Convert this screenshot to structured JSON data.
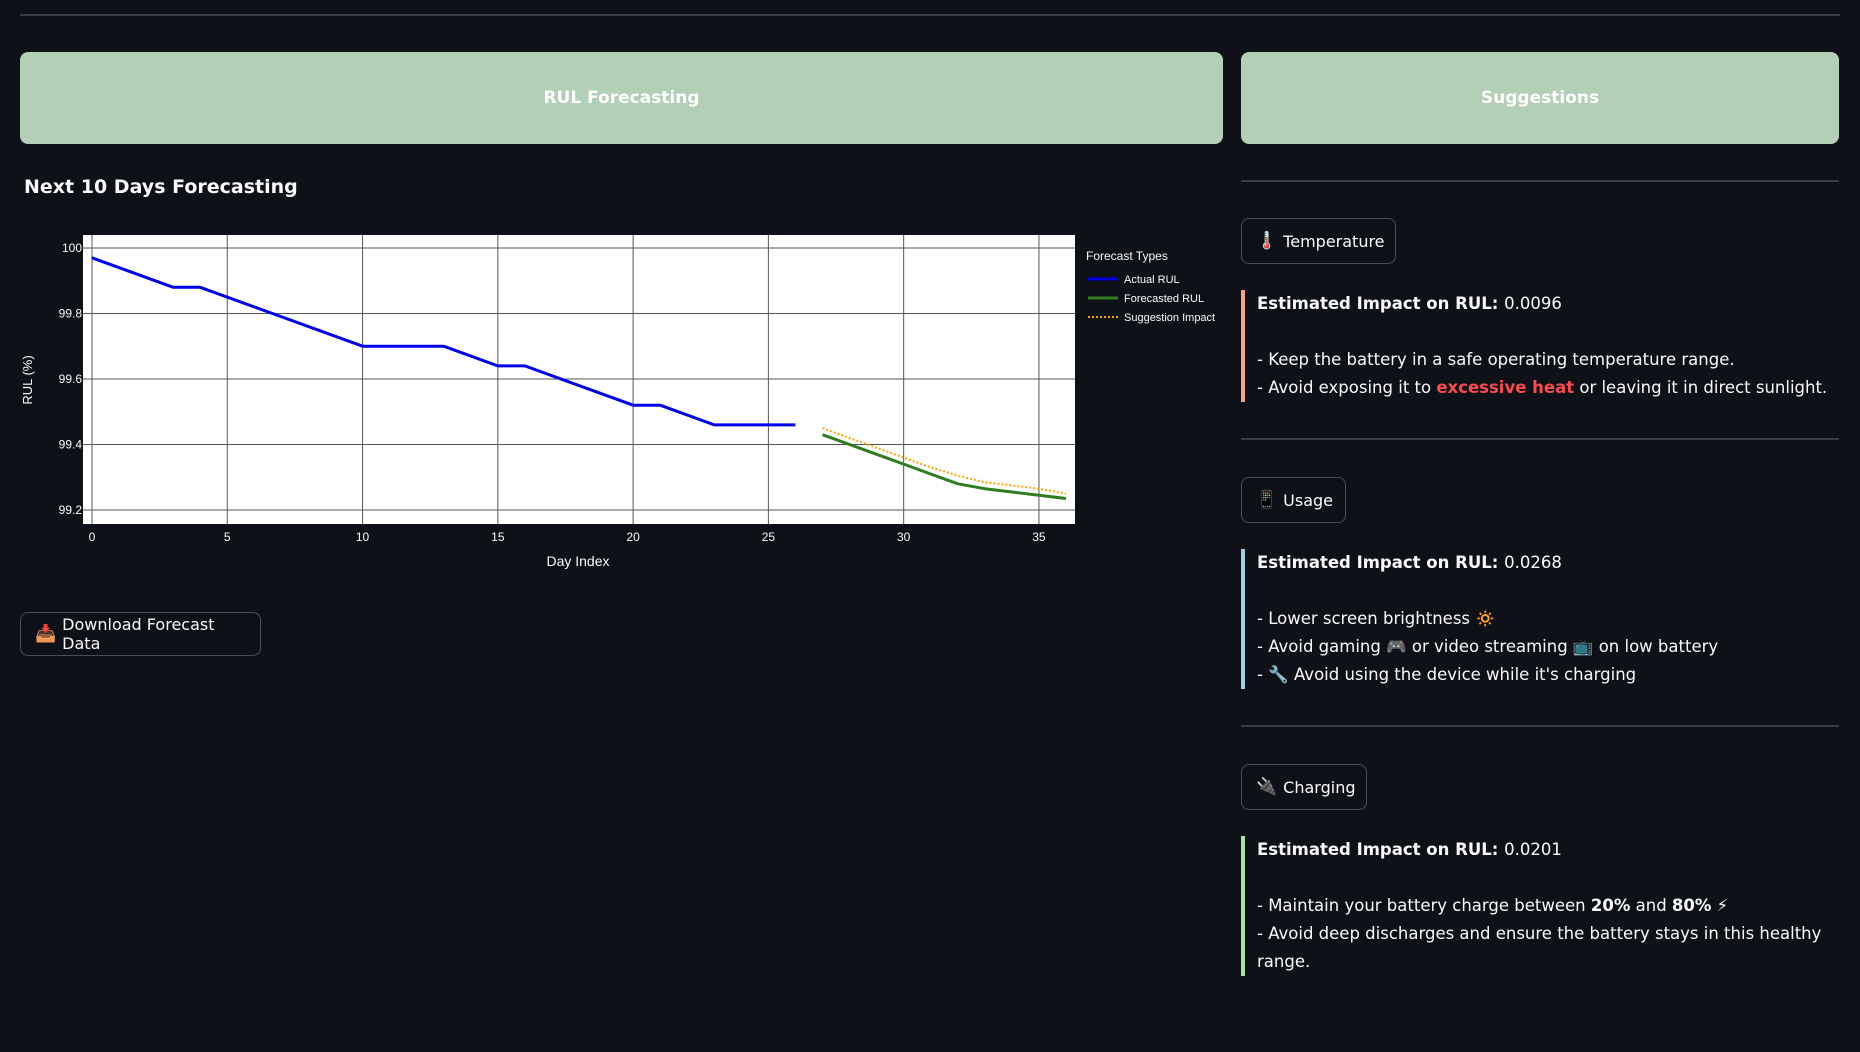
{
  "banners": {
    "left": "RUL Forecasting",
    "right": "Suggestions"
  },
  "section_title": "Next 10 Days Forecasting",
  "download_button": {
    "icon": "📥",
    "label": "Download Forecast Data"
  },
  "suggestions": {
    "temperature": {
      "icon": "🌡️",
      "label": "Temperature",
      "impact_label": "Estimated Impact on RUL:",
      "impact_value": "0.0096",
      "color": "#f4a582",
      "line1": "- Keep the battery in a safe operating temperature range.",
      "line2_pre": "- Avoid exposing it to ",
      "line2_em": "excessive heat",
      "line2_post": " or leaving it in direct sunlight."
    },
    "usage": {
      "icon": "📱",
      "label": "Usage",
      "impact_label": "Estimated Impact on RUL:",
      "impact_value": "0.0268",
      "color": "#a6cbe3",
      "line1": "- Lower screen brightness 🔅",
      "line2": "- Avoid gaming 🎮 or video streaming 📺 on low battery",
      "line3": "- 🔧 Avoid using the device while it's charging"
    },
    "charging": {
      "icon": "🔌",
      "label": "Charging",
      "impact_label": "Estimated Impact on RUL:",
      "impact_value": "0.0201",
      "color": "#a6e3a1",
      "line1_pre": "- Maintain your battery charge between ",
      "line1_b1": "20%",
      "line1_mid": " and ",
      "line1_b2": "80%",
      "line1_post": " ⚡",
      "line2": "- Avoid deep discharges and ensure the battery stays in this healthy range."
    }
  },
  "chart_data": {
    "type": "line",
    "xlabel": "Day Index",
    "ylabel": "RUL (%)",
    "xlim": [
      0,
      36
    ],
    "ylim": [
      99.2,
      100
    ],
    "x_ticks": [
      0,
      5,
      10,
      15,
      20,
      25,
      30,
      35
    ],
    "y_ticks": [
      99.2,
      99.4,
      99.6,
      99.8,
      100
    ],
    "grid": true,
    "legend_title": "Forecast Types",
    "legend_position": "right",
    "series": [
      {
        "name": "Actual RUL",
        "color": "#0000ee",
        "style": "solid",
        "points": [
          [
            0,
            99.97
          ],
          [
            3,
            99.88
          ],
          [
            4,
            99.88
          ],
          [
            10,
            99.7
          ],
          [
            13,
            99.7
          ],
          [
            15,
            99.64
          ],
          [
            16,
            99.64
          ],
          [
            20,
            99.52
          ],
          [
            21,
            99.52
          ],
          [
            23,
            99.46
          ],
          [
            26,
            99.46
          ]
        ]
      },
      {
        "name": "Forecasted RUL",
        "color": "#2e7d1e",
        "style": "solid",
        "points": [
          [
            27,
            99.43
          ],
          [
            28,
            99.4
          ],
          [
            29,
            99.37
          ],
          [
            30,
            99.34
          ],
          [
            31,
            99.31
          ],
          [
            32,
            99.28
          ],
          [
            33,
            99.265
          ],
          [
            34,
            99.255
          ],
          [
            35,
            99.245
          ],
          [
            36,
            99.235
          ]
        ]
      },
      {
        "name": "Suggestion Impact",
        "color": "#ffa500",
        "style": "dotted",
        "points": [
          [
            27,
            99.45
          ],
          [
            28,
            99.42
          ],
          [
            29,
            99.39
          ],
          [
            30,
            99.36
          ],
          [
            31,
            99.33
          ],
          [
            32,
            99.305
          ],
          [
            33,
            99.285
          ],
          [
            34,
            99.275
          ],
          [
            35,
            99.265
          ],
          [
            36,
            99.25
          ]
        ]
      }
    ]
  }
}
